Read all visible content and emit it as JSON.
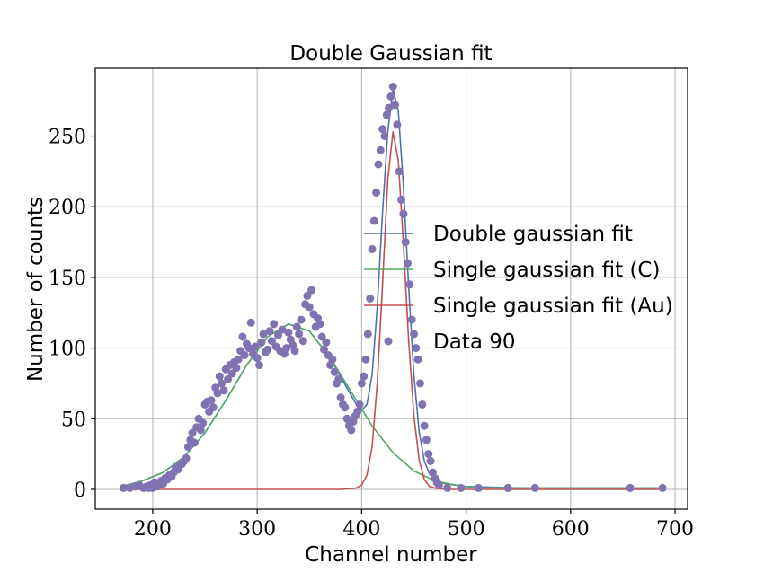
{
  "chart_data": {
    "type": "scatter",
    "title": "Double Gaussian fit",
    "xlabel": "Channel number",
    "ylabel": "Number of counts",
    "xlim": [
      145,
      712
    ],
    "ylim": [
      -14,
      298
    ],
    "xticks": [
      200,
      300,
      400,
      500,
      600,
      700
    ],
    "yticks": [
      0,
      50,
      100,
      150,
      200,
      250
    ],
    "grid": true,
    "legend_position": "center-right",
    "series": [
      {
        "name": "Double gaussian fit",
        "kind": "line",
        "color": "#4c72b0",
        "x": [
          170,
          190,
          210,
          230,
          250,
          270,
          290,
          310,
          330,
          350,
          370,
          385,
          395,
          400,
          405,
          410,
          415,
          420,
          425,
          430,
          435,
          440,
          445,
          450,
          455,
          460,
          465,
          470,
          480,
          500,
          550,
          600,
          650,
          690
        ],
        "y": [
          2,
          6,
          12,
          23,
          40,
          63,
          88,
          108,
          117,
          112,
          93,
          73,
          60,
          56,
          60,
          81,
          130,
          196,
          253,
          283,
          268,
          214,
          143,
          81,
          41,
          20,
          11,
          7,
          4,
          2,
          1,
          1,
          1,
          1
        ]
      },
      {
        "name": "Single gaussian fit (C)",
        "kind": "line",
        "color": "#55a868",
        "x": [
          170,
          190,
          210,
          230,
          250,
          270,
          290,
          310,
          330,
          350,
          370,
          390,
          410,
          430,
          450,
          470,
          490,
          510,
          550,
          600,
          650,
          690
        ],
        "y": [
          2,
          6,
          12,
          23,
          40,
          63,
          88,
          108,
          117,
          112,
          93,
          69,
          45,
          26,
          13,
          6,
          3,
          1,
          1,
          1,
          1,
          1
        ]
      },
      {
        "name": "Single gaussian fit (Au)",
        "kind": "line",
        "color": "#c44e52",
        "x": [
          170,
          380,
          395,
          400,
          405,
          410,
          415,
          420,
          425,
          430,
          435,
          440,
          445,
          450,
          455,
          460,
          465,
          470,
          480,
          690
        ],
        "y": [
          0,
          0,
          1,
          3,
          10,
          30,
          76,
          145,
          219,
          253,
          233,
          173,
          105,
          52,
          21,
          7,
          2,
          1,
          0,
          0
        ]
      },
      {
        "name": "Data 90",
        "kind": "scatter",
        "color": "#8172b2",
        "x": [
          172,
          178,
          183,
          187,
          191,
          194,
          196,
          198,
          200,
          202,
          204,
          206,
          208,
          210,
          212,
          214,
          216,
          218,
          220,
          222,
          224,
          226,
          228,
          230,
          232,
          234,
          236,
          238,
          240,
          242,
          244,
          246,
          248,
          250,
          252,
          254,
          256,
          258,
          260,
          262,
          264,
          266,
          268,
          270,
          272,
          274,
          276,
          278,
          280,
          282,
          284,
          286,
          288,
          290,
          292,
          294,
          296,
          298,
          300,
          302,
          304,
          306,
          308,
          310,
          312,
          314,
          316,
          318,
          320,
          322,
          324,
          326,
          328,
          330,
          332,
          334,
          336,
          338,
          340,
          342,
          344,
          346,
          348,
          350,
          352,
          354,
          356,
          358,
          360,
          362,
          364,
          366,
          368,
          370,
          372,
          374,
          376,
          378,
          380,
          382,
          384,
          386,
          388,
          390,
          392,
          394,
          396,
          398,
          400,
          402,
          404,
          406,
          408,
          410,
          412,
          414,
          416,
          418,
          420,
          422,
          424,
          426,
          428,
          430,
          432,
          434,
          436,
          438,
          440,
          442,
          444,
          446,
          448,
          450,
          452,
          454,
          456,
          458,
          460,
          462,
          464,
          466,
          468,
          470,
          472,
          474,
          482,
          495,
          512,
          540,
          566,
          657,
          688
        ],
        "y": [
          1,
          1,
          2,
          3,
          1,
          2,
          1,
          3,
          1,
          5,
          2,
          3,
          6,
          4,
          8,
          7,
          10,
          9,
          12,
          15,
          14,
          17,
          18,
          20,
          22,
          30,
          35,
          40,
          33,
          44,
          50,
          42,
          47,
          60,
          62,
          55,
          63,
          58,
          72,
          68,
          80,
          75,
          70,
          85,
          78,
          88,
          82,
          90,
          86,
          92,
          98,
          108,
          95,
          103,
          100,
          118,
          96,
          101,
          93,
          88,
          104,
          110,
          97,
          99,
          112,
          105,
          117,
          101,
          109,
          98,
          113,
          96,
          100,
          111,
          106,
          102,
          98,
          115,
          110,
          120,
          105,
          131,
          137,
          129,
          141,
          124,
          115,
          121,
          117,
          108,
          99,
          104,
          95,
          88,
          92,
          83,
          75,
          78,
          65,
          60,
          58,
          50,
          45,
          42,
          48,
          52,
          55,
          60,
          75,
          80,
          92,
          110,
          135,
          170,
          190,
          210,
          230,
          240,
          255,
          250,
          265,
          270,
          278,
          285,
          272,
          258,
          225,
          205,
          195,
          175,
          160,
          145,
          120,
          110,
          100,
          92,
          75,
          60,
          45,
          35,
          25,
          20,
          12,
          8,
          5,
          3,
          1,
          1,
          1,
          1,
          1,
          1,
          1
        ]
      }
    ]
  }
}
